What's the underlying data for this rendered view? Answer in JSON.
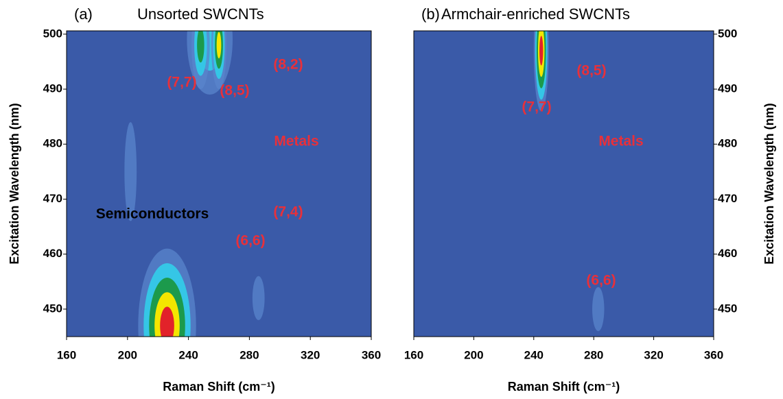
{
  "chart_data": [
    {
      "type": "contour",
      "label": "(a)",
      "title": "Unsorted SWCNTs",
      "xlabel": "Raman Shift (cm⁻¹)",
      "ylabel": "Excitation Wavelength (nm)",
      "yaxis_side": "left",
      "xlim": [
        160,
        360
      ],
      "xticks": [
        160,
        200,
        240,
        280,
        320,
        360
      ],
      "ylim": [
        445,
        500.6
      ],
      "yticks": [
        450,
        460,
        470,
        480,
        490,
        500
      ],
      "background": "#3a5aa8",
      "colormap": [
        "#5a86cc",
        "#35c6e6",
        "#1c9a4c",
        "#f4e600",
        "#e2222a"
      ],
      "peaks": {
        "x": [
          254,
          248,
          260,
          226,
          202,
          286
        ],
        "y": [
          499,
          498,
          498,
          447,
          475,
          452
        ],
        "level": [
          2,
          3,
          4,
          5,
          1,
          1
        ],
        "x_width": [
          15,
          6,
          5,
          19,
          4,
          4
        ],
        "y_width": [
          10,
          8,
          8,
          14,
          9,
          4
        ]
      },
      "annotations": [
        {
          "text": "(7,7)",
          "color": "#e8303a"
        },
        {
          "text": "(8,5)",
          "color": "#e8303a"
        },
        {
          "text": "(8,2)",
          "color": "#e8303a"
        },
        {
          "text": "Metals",
          "color": "#e8303a"
        },
        {
          "text": "(7,4)",
          "color": "#e8303a"
        },
        {
          "text": "(6,6)",
          "color": "#e8303a"
        },
        {
          "text": "Semiconductors",
          "color": "#000000"
        }
      ]
    },
    {
      "type": "contour",
      "label": "(b)",
      "title": "Armchair-enriched SWCNTs",
      "xlabel": "Raman Shift (cm⁻¹)",
      "ylabel": "Excitation Wavelength (nm)",
      "yaxis_side": "right",
      "xlim": [
        160,
        360
      ],
      "xticks": [
        160,
        200,
        240,
        280,
        320,
        360
      ],
      "ylim": [
        445,
        500.6
      ],
      "yticks": [
        450,
        460,
        470,
        480,
        490,
        500
      ],
      "background": "#3a5aa8",
      "colormap": [
        "#5a86cc",
        "#35c6e6",
        "#1c9a4c",
        "#f4e600",
        "#e2222a"
      ],
      "peaks": {
        "x": [
          245,
          283
        ],
        "y": [
          497,
          450
        ],
        "level": [
          5,
          1
        ],
        "x_width": [
          5,
          4
        ],
        "y_width": [
          11,
          4
        ]
      },
      "annotations": [
        {
          "text": "(8,5)",
          "color": "#e8303a"
        },
        {
          "text": "(7,7)",
          "color": "#e8303a"
        },
        {
          "text": "Metals",
          "color": "#e8303a"
        },
        {
          "text": "(6,6)",
          "color": "#e8303a"
        }
      ]
    }
  ]
}
